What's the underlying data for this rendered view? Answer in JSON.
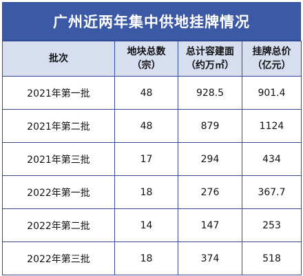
{
  "title": "广州近两年集中供地挂牌情况",
  "table": {
    "headers": [
      {
        "line1": "批次",
        "line2": ""
      },
      {
        "line1": "地块总数",
        "line2": "（宗）"
      },
      {
        "line1": "总计容建面",
        "line2": "（约万㎡）"
      },
      {
        "line1": "挂牌总价",
        "line2": "（亿元）"
      }
    ],
    "rows": [
      [
        "2021年第一批",
        "48",
        "928.5",
        "901.4"
      ],
      [
        "2021年第二批",
        "48",
        "879",
        "1124"
      ],
      [
        "2021年第三批",
        "17",
        "294",
        "434"
      ],
      [
        "2022年第一批",
        "18",
        "276",
        "367.7"
      ],
      [
        "2022年第二批",
        "14",
        "147",
        "253"
      ],
      [
        "2022年第三批",
        "18",
        "374",
        "518"
      ]
    ]
  },
  "colors": {
    "title_bg": "#3c59a5",
    "header_bg": "#d6deef",
    "border": "#2f4a93"
  }
}
